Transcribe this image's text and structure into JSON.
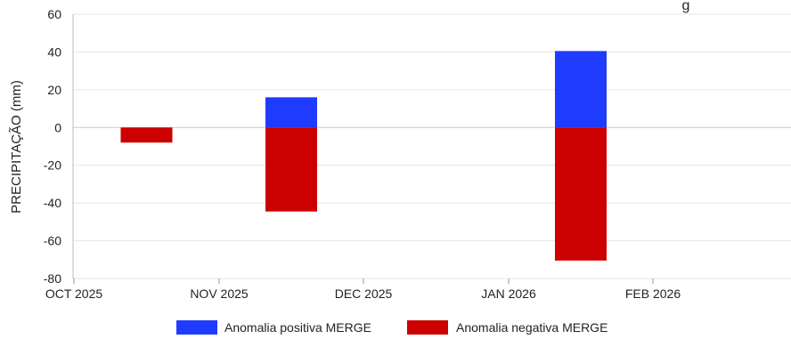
{
  "chart_data": {
    "type": "bar",
    "title": "",
    "title_fragment": "g",
    "xlabel": "",
    "ylabel": "PRECIPITAÇÃO (mm)",
    "ylim": [
      -80,
      60
    ],
    "yticks": [
      60,
      40,
      20,
      0,
      -20,
      -40,
      -60,
      -80
    ],
    "grid": true,
    "legend_position": "bottom",
    "x_tick_labels": [
      "OCT 2025",
      "NOV 2025",
      "DEC 2025",
      "JAN 2026",
      "FEB 2026"
    ],
    "series": [
      {
        "name": "Anomalia positiva MERGE",
        "color": "#1f3bff",
        "bars": [
          {
            "between": [
              "NOV 2025",
              "DEC 2025"
            ],
            "value": 16
          },
          {
            "between": [
              "JAN 2026",
              "FEB 2026"
            ],
            "value": 40.5
          }
        ]
      },
      {
        "name": "Anomalia negativa MERGE",
        "color": "#cc0000",
        "bars": [
          {
            "between": [
              "OCT 2025",
              "NOV 2025"
            ],
            "value": -8
          },
          {
            "between": [
              "NOV 2025",
              "DEC 2025"
            ],
            "value": -44.5
          },
          {
            "between": [
              "JAN 2026",
              "FEB 2026"
            ],
            "value": -70.5
          }
        ]
      }
    ]
  }
}
